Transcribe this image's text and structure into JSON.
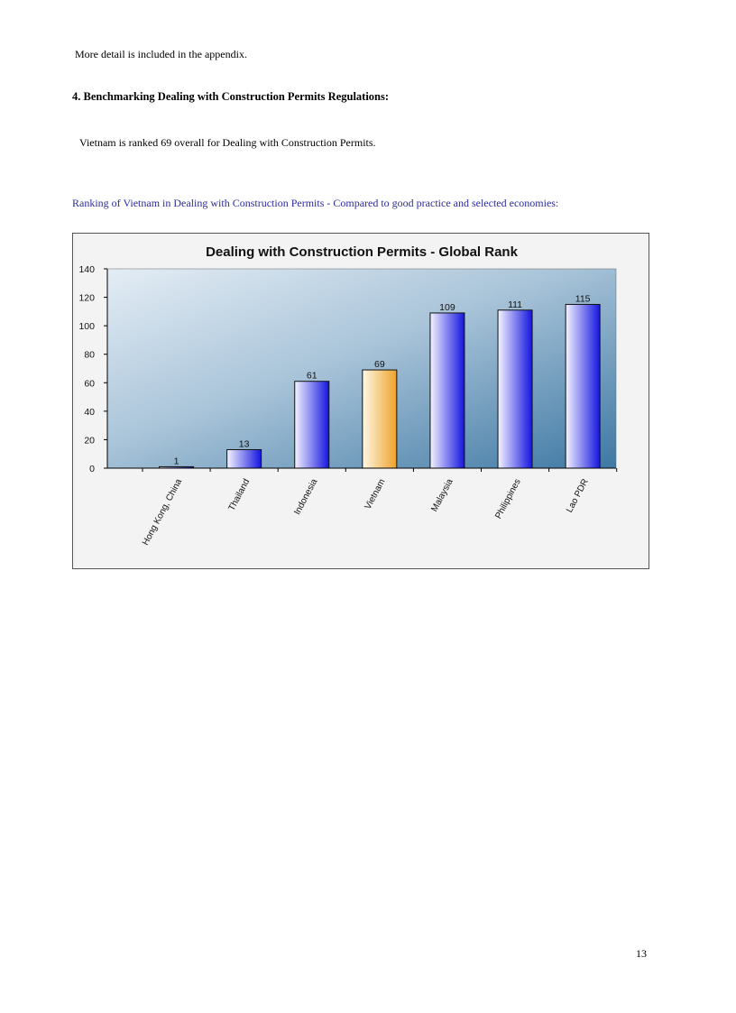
{
  "body": {
    "intro_line": "More detail is included in the appendix.",
    "heading": "4. Benchmarking Dealing with Construction Permits Regulations:",
    "summary": "Vietnam is ranked 69 overall for Dealing with Construction Permits.",
    "chart_caption": "Ranking of Vietnam in Dealing with Construction Permits -  Compared to good practice and selected economies:",
    "page_number": "13"
  },
  "colors": {
    "caption": "#2b2b9e",
    "bar": "#1a1ae6",
    "highlight_bar": "#f0a830"
  },
  "chart_data": {
    "type": "bar",
    "title": "Dealing with Construction Permits - Global Rank",
    "xlabel": "",
    "ylabel": "",
    "categories": [
      "Hong Kong, China",
      "Thailand",
      "Indonesia",
      "Vietnam",
      "Malaysia",
      "Philippines",
      "Lao PDR"
    ],
    "values": [
      1,
      13,
      61,
      69,
      109,
      111,
      115
    ],
    "data_labels": [
      "1",
      "13",
      "61",
      "69",
      "109",
      "111",
      "115"
    ],
    "highlight": "Vietnam",
    "ylim": [
      0,
      140
    ],
    "yticks": [
      0,
      20,
      40,
      60,
      80,
      100,
      120,
      140
    ],
    "grid": false,
    "legend": "none"
  }
}
